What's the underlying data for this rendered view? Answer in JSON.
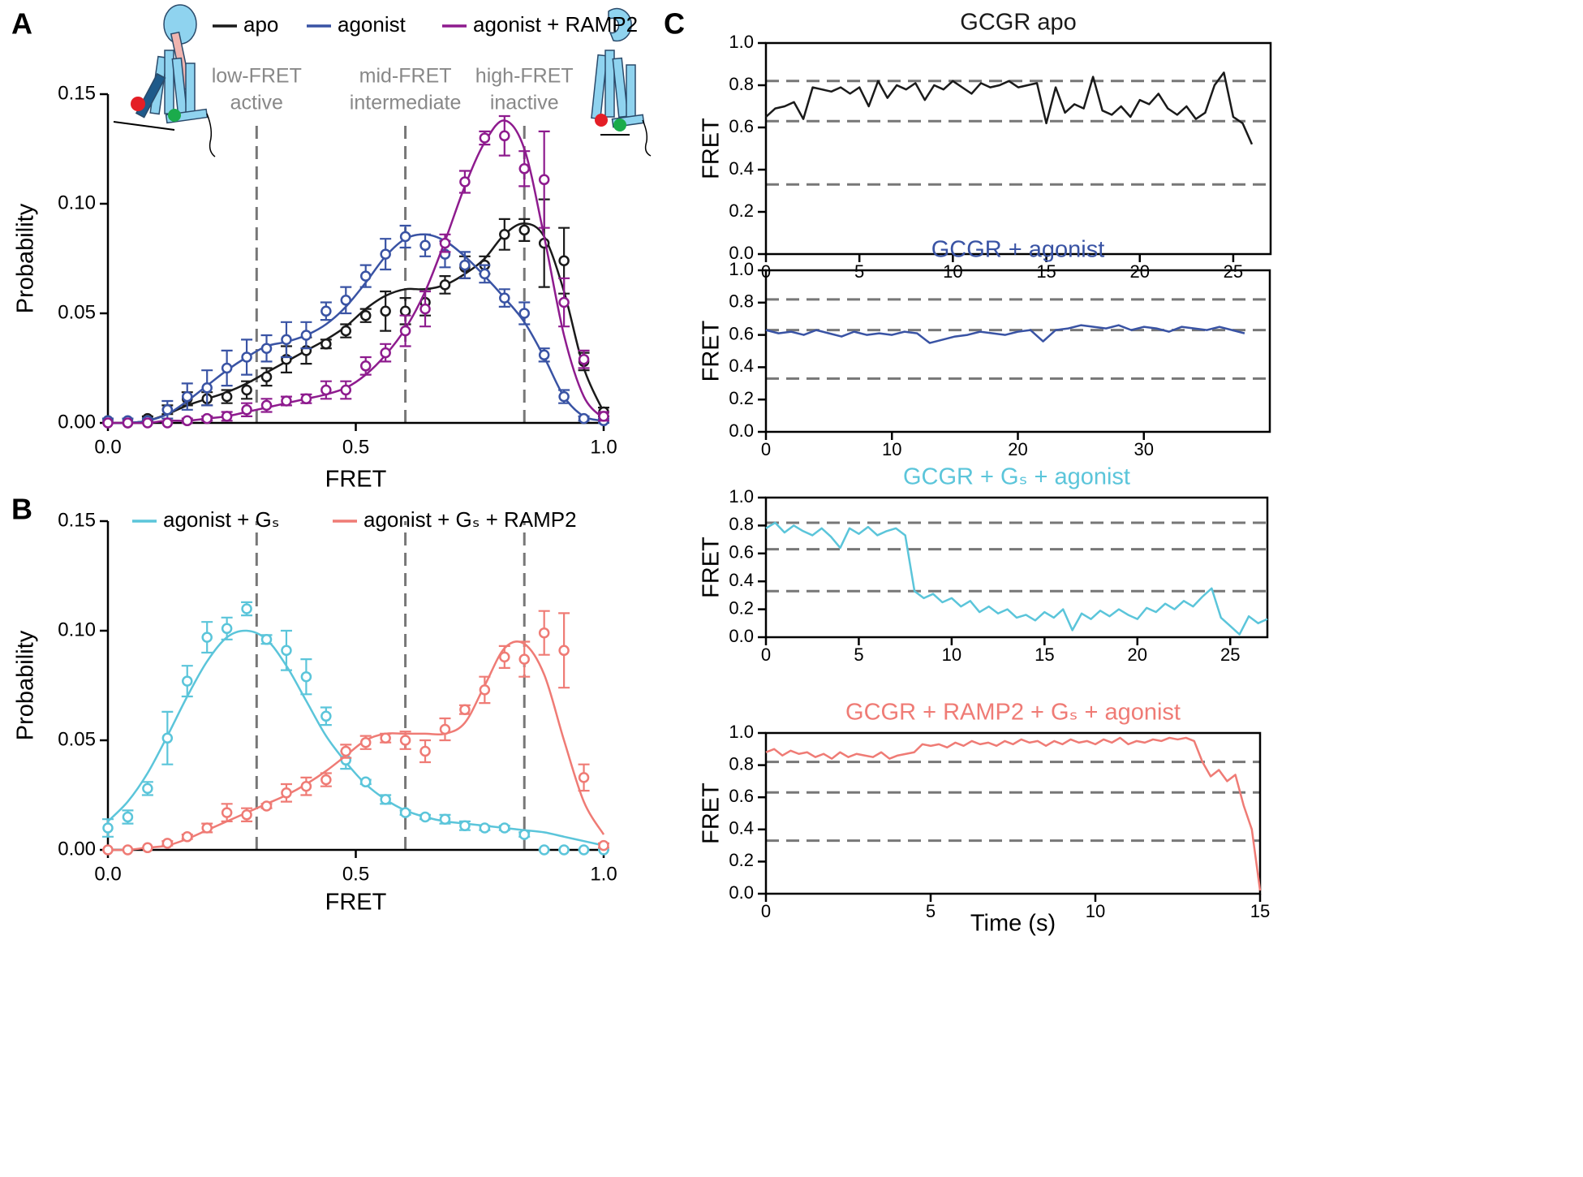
{
  "chart_data": [
    {
      "type": "scatter",
      "panel_label": "A",
      "xlabel": "FRET",
      "ylabel": "Probability",
      "x": [
        0,
        0.04,
        0.08,
        0.12,
        0.16,
        0.2,
        0.24,
        0.28,
        0.32,
        0.36,
        0.4,
        0.44,
        0.48,
        0.52,
        0.56,
        0.6,
        0.64,
        0.68,
        0.72,
        0.76,
        0.8,
        0.84,
        0.88,
        0.92,
        0.96,
        1
      ],
      "series": [
        {
          "name": "apo",
          "color": "#1a1a1a",
          "values": [
            0.001,
            0,
            0.002,
            0.006,
            0.011,
            0.011,
            0.012,
            0.015,
            0.021,
            0.029,
            0.033,
            0.036,
            0.042,
            0.049,
            0.051,
            0.051,
            0.055,
            0.063,
            0.071,
            0.072,
            0.086,
            0.088,
            0.082,
            0.074,
            0.028,
            0.005
          ],
          "errors": [
            0.001,
            0,
            0.001,
            0.002,
            0.003,
            0.003,
            0.003,
            0.004,
            0.004,
            0.006,
            0.006,
            0.002,
            0.003,
            0.003,
            0.009,
            0.006,
            0.006,
            0.004,
            0.005,
            0.004,
            0.007,
            0.005,
            0.02,
            0.015,
            0.004,
            0.002
          ],
          "fit": [
            0,
            0,
            0.001,
            0.004,
            0.008,
            0.011,
            0.014,
            0.018,
            0.023,
            0.028,
            0.033,
            0.038,
            0.044,
            0.052,
            0.058,
            0.061,
            0.061,
            0.063,
            0.068,
            0.075,
            0.086,
            0.091,
            0.085,
            0.06,
            0.025,
            0.005
          ]
        },
        {
          "name": "agonist",
          "color": "#3953a4",
          "values": [
            0.001,
            0.001,
            0.001,
            0.006,
            0.012,
            0.016,
            0.025,
            0.03,
            0.034,
            0.038,
            0.04,
            0.051,
            0.056,
            0.067,
            0.077,
            0.085,
            0.081,
            0.077,
            0.072,
            0.068,
            0.057,
            0.05,
            0.031,
            0.012,
            0.002,
            0.001
          ],
          "errors": [
            0.001,
            0.001,
            0.001,
            0.004,
            0.006,
            0.008,
            0.008,
            0.008,
            0.006,
            0.008,
            0.006,
            0.004,
            0.006,
            0.005,
            0.007,
            0.005,
            0.005,
            0.006,
            0.006,
            0.004,
            0.004,
            0.005,
            0.003,
            0.003,
            0.001,
            0.001
          ],
          "fit": [
            0,
            0,
            0.001,
            0.004,
            0.01,
            0.017,
            0.024,
            0.03,
            0.035,
            0.037,
            0.04,
            0.045,
            0.053,
            0.064,
            0.076,
            0.084,
            0.086,
            0.083,
            0.076,
            0.067,
            0.057,
            0.046,
            0.03,
            0.012,
            0.003,
            0.001
          ]
        },
        {
          "name": "agonist + RAMP2",
          "color": "#8e1b8e",
          "values": [
            0,
            0,
            0,
            0,
            0.001,
            0.002,
            0.003,
            0.006,
            0.008,
            0.01,
            0.011,
            0.015,
            0.015,
            0.026,
            0.032,
            0.042,
            0.052,
            0.082,
            0.11,
            0.13,
            0.131,
            0.116,
            0.111,
            0.055,
            0.029,
            0.003
          ],
          "errors": [
            0,
            0,
            0,
            0,
            0.001,
            0.001,
            0.002,
            0.003,
            0.003,
            0.002,
            0.002,
            0.004,
            0.004,
            0.004,
            0.004,
            0.007,
            0.008,
            0.004,
            0.005,
            0.003,
            0.009,
            0.008,
            0.022,
            0.011,
            0.004,
            0.002
          ],
          "fit": [
            0,
            0,
            0,
            0.001,
            0.001,
            0.002,
            0.003,
            0.005,
            0.007,
            0.009,
            0.011,
            0.013,
            0.016,
            0.022,
            0.031,
            0.043,
            0.06,
            0.083,
            0.108,
            0.128,
            0.138,
            0.125,
            0.085,
            0.04,
            0.012,
            0.002
          ]
        }
      ],
      "xlim": [
        0,
        1
      ],
      "ylim": [
        0,
        0.15
      ],
      "xticks": [
        {
          "value": 0,
          "label": "0.0"
        },
        0.5,
        {
          "value": 1,
          "label": "1.0"
        }
      ],
      "yticks": [
        {
          "value": 0,
          "label": "0.00"
        },
        0.05,
        {
          "value": 0.1,
          "label": "0.10"
        },
        0.15
      ],
      "vlines": [
        0.3,
        0.6,
        0.84
      ],
      "vline_labels": [
        [
          "low-FRET",
          "active"
        ],
        [
          "mid-FRET",
          "intermediate"
        ],
        [
          "high-FRET",
          "inactive"
        ]
      ]
    },
    {
      "type": "scatter",
      "panel_label": "B",
      "xlabel": "FRET",
      "ylabel": "Probability",
      "x": [
        0,
        0.04,
        0.08,
        0.12,
        0.16,
        0.2,
        0.24,
        0.28,
        0.32,
        0.36,
        0.4,
        0.44,
        0.48,
        0.52,
        0.56,
        0.6,
        0.64,
        0.68,
        0.72,
        0.76,
        0.8,
        0.84,
        0.88,
        0.92,
        0.96,
        1
      ],
      "series": [
        {
          "name": "agonist + Gₛ",
          "color": "#5bc5da",
          "values": [
            0.01,
            0.015,
            0.028,
            0.051,
            0.077,
            0.097,
            0.101,
            0.11,
            0.096,
            0.091,
            0.079,
            0.061,
            0.041,
            0.031,
            0.023,
            0.017,
            0.015,
            0.014,
            0.011,
            0.01,
            0.01,
            0.007,
            0,
            0,
            0,
            0
          ],
          "errors": [
            0.004,
            0.003,
            0.003,
            0.012,
            0.007,
            0.007,
            0.005,
            0.003,
            0.002,
            0.009,
            0.008,
            0.004,
            0.004,
            0.001,
            0.002,
            0.001,
            0.001,
            0.002,
            0.002,
            0.001,
            0.001,
            0.001,
            0,
            0,
            0,
            0
          ],
          "fit": [
            0.013,
            0.022,
            0.035,
            0.052,
            0.07,
            0.086,
            0.097,
            0.1,
            0.096,
            0.084,
            0.068,
            0.052,
            0.04,
            0.03,
            0.023,
            0.018,
            0.015,
            0.013,
            0.012,
            0.011,
            0.01,
            0.009,
            0.008,
            0.006,
            0.004,
            0.002
          ]
        },
        {
          "name": "agonist + Gₛ + RAMP2",
          "color": "#ef7b75",
          "values": [
            0,
            0,
            0.001,
            0.003,
            0.006,
            0.01,
            0.017,
            0.016,
            0.02,
            0.026,
            0.029,
            0.032,
            0.045,
            0.049,
            0.051,
            0.05,
            0.045,
            0.055,
            0.064,
            0.073,
            0.088,
            0.087,
            0.099,
            0.091,
            0.033,
            0.002
          ],
          "errors": [
            0,
            0,
            0,
            0.001,
            0.001,
            0.002,
            0.004,
            0.003,
            0.001,
            0.004,
            0.004,
            0.003,
            0.003,
            0.003,
            0.002,
            0.004,
            0.005,
            0.005,
            0.002,
            0.006,
            0.005,
            0.008,
            0.01,
            0.017,
            0.006,
            0.001
          ],
          "fit": [
            0,
            0,
            0.001,
            0.002,
            0.005,
            0.009,
            0.013,
            0.017,
            0.021,
            0.025,
            0.03,
            0.036,
            0.043,
            0.05,
            0.053,
            0.053,
            0.053,
            0.053,
            0.058,
            0.075,
            0.092,
            0.094,
            0.08,
            0.05,
            0.022,
            0.007
          ]
        }
      ],
      "xlim": [
        0,
        1
      ],
      "ylim": [
        0,
        0.15
      ],
      "xticks": [
        {
          "value": 0,
          "label": "0.0"
        },
        0.5,
        {
          "value": 1,
          "label": "1.0"
        }
      ],
      "yticks": [
        {
          "value": 0,
          "label": "0.00"
        },
        0.05,
        {
          "value": 0.1,
          "label": "0.10"
        },
        0.15
      ],
      "vlines": [
        0.3,
        0.6,
        0.84
      ]
    },
    {
      "type": "line",
      "panel_label": "C",
      "title": "GCGR apo",
      "ylabel": "FRET",
      "x": [
        0,
        0.5,
        1,
        1.5,
        2,
        2.5,
        3,
        3.5,
        4,
        4.5,
        5,
        5.5,
        6,
        6.5,
        7,
        7.5,
        8,
        8.5,
        9,
        9.5,
        10,
        10.5,
        11,
        11.5,
        12,
        12.5,
        13,
        13.5,
        14,
        14.5,
        15,
        15.5,
        16,
        16.5,
        17,
        17.5,
        18,
        18.5,
        19,
        19.5,
        20,
        20.5,
        21,
        21.5,
        22,
        22.5,
        23,
        23.5,
        24,
        24.5,
        25,
        25.5,
        26
      ],
      "series": [
        {
          "color": "#1a1a1a",
          "values": [
            0.65,
            0.69,
            0.7,
            0.72,
            0.64,
            0.79,
            0.78,
            0.77,
            0.79,
            0.76,
            0.79,
            0.7,
            0.82,
            0.74,
            0.8,
            0.78,
            0.81,
            0.73,
            0.8,
            0.78,
            0.82,
            0.79,
            0.76,
            0.81,
            0.79,
            0.8,
            0.82,
            0.79,
            0.8,
            0.81,
            0.62,
            0.79,
            0.67,
            0.71,
            0.69,
            0.84,
            0.68,
            0.66,
            0.7,
            0.65,
            0.73,
            0.71,
            0.76,
            0.69,
            0.66,
            0.7,
            0.64,
            0.67,
            0.8,
            0.86,
            0.65,
            0.62,
            0.52
          ]
        }
      ],
      "xlim": [
        0,
        27
      ],
      "ylim": [
        0,
        1
      ],
      "xticks": [
        0,
        5,
        10,
        15,
        20,
        25
      ],
      "yticks": [
        {
          "value": 0,
          "label": "0.0"
        },
        0.2,
        0.4,
        0.6,
        0.8,
        {
          "value": 1,
          "label": "1.0"
        }
      ],
      "hlines": [
        0.82,
        0.63,
        0.33
      ]
    },
    {
      "type": "line",
      "title": "GCGR + agonist",
      "ylabel": "FRET",
      "x": [
        0,
        1,
        2,
        3,
        4,
        5,
        6,
        7,
        8,
        9,
        10,
        11,
        12,
        13,
        14,
        15,
        16,
        17,
        18,
        19,
        20,
        21,
        22,
        23,
        24,
        25,
        26,
        27,
        28,
        29,
        30,
        31,
        32,
        33,
        34,
        35,
        36,
        37,
        38
      ],
      "series": [
        {
          "color": "#3953a4",
          "values": [
            0.63,
            0.61,
            0.62,
            0.6,
            0.63,
            0.61,
            0.59,
            0.62,
            0.6,
            0.61,
            0.6,
            0.62,
            0.61,
            0.55,
            0.57,
            0.59,
            0.6,
            0.62,
            0.61,
            0.6,
            0.62,
            0.63,
            0.56,
            0.63,
            0.64,
            0.66,
            0.65,
            0.64,
            0.66,
            0.63,
            0.65,
            0.64,
            0.62,
            0.65,
            0.64,
            0.63,
            0.65,
            0.63,
            0.61
          ]
        }
      ],
      "xlim": [
        0,
        40
      ],
      "ylim": [
        0,
        1
      ],
      "xticks": [
        0,
        10,
        20,
        30
      ],
      "yticks": [
        {
          "value": 0,
          "label": "0.0"
        },
        0.2,
        0.4,
        0.6,
        0.8,
        {
          "value": 1,
          "label": "1.0"
        }
      ],
      "hlines": [
        0.82,
        0.63,
        0.33
      ]
    },
    {
      "type": "line",
      "title": "GCGR + Gₛ + agonist",
      "ylabel": "FRET",
      "x": [
        0,
        0.5,
        1,
        1.5,
        2,
        2.5,
        3,
        3.5,
        4,
        4.5,
        5,
        5.5,
        6,
        6.5,
        7,
        7.5,
        8,
        8.5,
        9,
        9.5,
        10,
        10.5,
        11,
        11.5,
        12,
        12.5,
        13,
        13.5,
        14,
        14.5,
        15,
        15.5,
        16,
        16.5,
        17,
        17.5,
        18,
        18.5,
        19,
        19.5,
        20,
        20.5,
        21,
        21.5,
        22,
        22.5,
        23,
        23.5,
        24,
        24.5,
        25,
        25.5,
        26,
        26.5,
        27
      ],
      "series": [
        {
          "color": "#5bc5da",
          "values": [
            0.78,
            0.82,
            0.75,
            0.8,
            0.76,
            0.73,
            0.78,
            0.72,
            0.64,
            0.78,
            0.74,
            0.79,
            0.73,
            0.76,
            0.78,
            0.73,
            0.33,
            0.28,
            0.31,
            0.25,
            0.28,
            0.22,
            0.26,
            0.18,
            0.22,
            0.17,
            0.2,
            0.14,
            0.16,
            0.12,
            0.18,
            0.14,
            0.2,
            0.05,
            0.17,
            0.13,
            0.19,
            0.15,
            0.2,
            0.16,
            0.13,
            0.21,
            0.18,
            0.24,
            0.2,
            0.26,
            0.22,
            0.29,
            0.35,
            0.14,
            0.08,
            0.02,
            0.15,
            0.1,
            0.13
          ]
        }
      ],
      "xlim": [
        0,
        27
      ],
      "ylim": [
        0,
        1
      ],
      "xticks": [
        0,
        5,
        10,
        15,
        20,
        25
      ],
      "yticks": [
        {
          "value": 0,
          "label": "0.0"
        },
        0.2,
        0.4,
        0.6,
        0.8,
        {
          "value": 1,
          "label": "1.0"
        }
      ],
      "hlines": [
        0.82,
        0.63,
        0.33
      ]
    },
    {
      "type": "line",
      "title": "GCGR + RAMP2 + Gₛ + agonist",
      "ylabel": "FRET",
      "xlabel": "Time (s)",
      "x": [
        0,
        0.25,
        0.5,
        0.75,
        1,
        1.25,
        1.5,
        1.75,
        2,
        2.25,
        2.5,
        2.75,
        3,
        3.25,
        3.5,
        3.75,
        4,
        4.25,
        4.5,
        4.75,
        5,
        5.25,
        5.5,
        5.75,
        6,
        6.25,
        6.5,
        6.75,
        7,
        7.25,
        7.5,
        7.75,
        8,
        8.25,
        8.5,
        8.75,
        9,
        9.25,
        9.5,
        9.75,
        10,
        10.25,
        10.5,
        10.75,
        11,
        11.25,
        11.5,
        11.75,
        12,
        12.25,
        12.5,
        12.75,
        13,
        13.25,
        13.5,
        13.75,
        14,
        14.25,
        14.5,
        14.75,
        15
      ],
      "series": [
        {
          "color": "#ef7b75",
          "values": [
            0.88,
            0.9,
            0.86,
            0.89,
            0.87,
            0.88,
            0.85,
            0.87,
            0.84,
            0.88,
            0.85,
            0.87,
            0.86,
            0.85,
            0.88,
            0.84,
            0.86,
            0.87,
            0.88,
            0.93,
            0.92,
            0.93,
            0.91,
            0.94,
            0.92,
            0.95,
            0.93,
            0.94,
            0.92,
            0.95,
            0.93,
            0.96,
            0.94,
            0.95,
            0.92,
            0.95,
            0.93,
            0.96,
            0.94,
            0.95,
            0.93,
            0.96,
            0.94,
            0.97,
            0.93,
            0.95,
            0.94,
            0.96,
            0.95,
            0.97,
            0.96,
            0.97,
            0.95,
            0.82,
            0.73,
            0.77,
            0.7,
            0.74,
            0.55,
            0.4,
            0.02
          ]
        }
      ],
      "xlim": [
        0,
        15
      ],
      "ylim": [
        0,
        1
      ],
      "xticks": [
        0,
        5,
        10,
        15
      ],
      "yticks": [
        {
          "value": 0,
          "label": "0.0"
        },
        0.2,
        0.4,
        0.6,
        0.8,
        {
          "value": 1,
          "label": "1.0"
        }
      ],
      "hlines": [
        0.82,
        0.63,
        0.33
      ]
    }
  ]
}
